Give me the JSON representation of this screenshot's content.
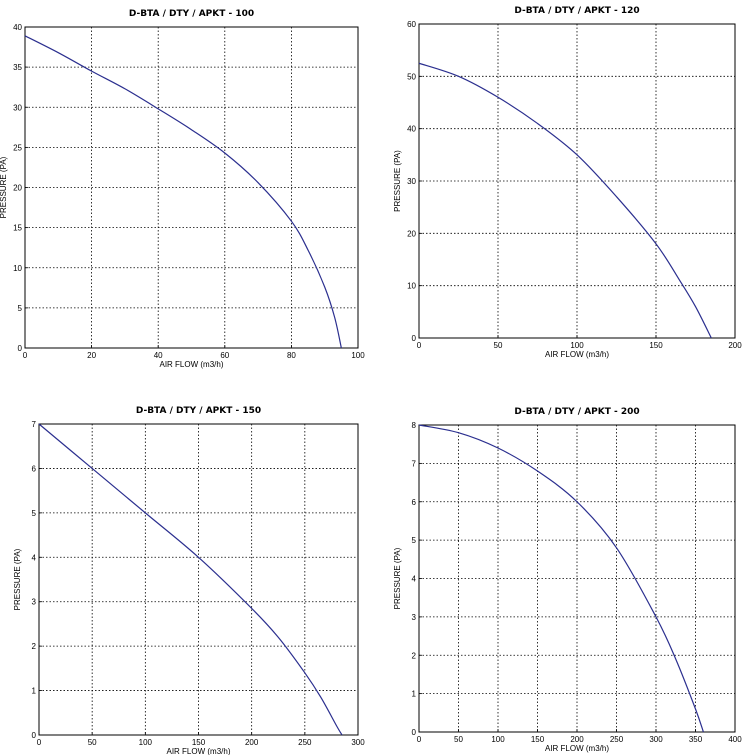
{
  "chart_data": [
    {
      "type": "line",
      "title": "D-BTA / DTY / APKT - 100",
      "xlabel": "AIR FLOW (m3/h)",
      "ylabel": "PRESSURE (PA)",
      "xlim": [
        0,
        100
      ],
      "ylim": [
        0,
        40
      ],
      "xticks": [
        0,
        20,
        40,
        60,
        80,
        100
      ],
      "yticks": [
        0,
        5,
        10,
        15,
        20,
        25,
        30,
        35,
        40
      ],
      "grid": true,
      "series": [
        {
          "x": [
            0,
            10,
            20,
            30,
            40,
            50,
            60,
            70,
            80,
            85,
            90,
            93,
            95
          ],
          "y": [
            38.9,
            36.8,
            34.5,
            32.3,
            29.8,
            27.2,
            24.3,
            20.6,
            15.8,
            12.2,
            7.6,
            3.8,
            0
          ]
        }
      ]
    },
    {
      "type": "line",
      "title": "D-BTA / DTY / APKT - 120",
      "xlabel": "AIR FLOW (m3/h)",
      "ylabel": "PRESSURE (PA)",
      "xlim": [
        0,
        200
      ],
      "ylim": [
        0,
        60
      ],
      "xticks": [
        0,
        50,
        100,
        150,
        200
      ],
      "yticks": [
        0,
        10,
        20,
        30,
        40,
        50,
        60
      ],
      "grid": true,
      "series": [
        {
          "x": [
            0,
            25,
            50,
            75,
            100,
            125,
            150,
            165,
            175,
            185
          ],
          "y": [
            52.5,
            50.0,
            46.0,
            41.0,
            35.0,
            27.0,
            18.0,
            11.0,
            6.0,
            0
          ]
        }
      ]
    },
    {
      "type": "line",
      "title": "D-BTA / DTY / APKT - 150",
      "xlabel": "AIR FLOW (m3/h)",
      "ylabel": "PRESSURE (PA)",
      "xlim": [
        0,
        300
      ],
      "ylim": [
        0,
        7
      ],
      "xticks": [
        0,
        50,
        100,
        150,
        200,
        250,
        300
      ],
      "yticks": [
        0,
        1,
        2,
        3,
        4,
        5,
        6,
        7
      ],
      "grid": true,
      "series": [
        {
          "x": [
            0,
            50,
            100,
            150,
            200,
            225,
            250,
            265,
            280,
            285
          ],
          "y": [
            7.0,
            6.0,
            5.0,
            4.0,
            2.85,
            2.2,
            1.4,
            0.85,
            0.2,
            0
          ]
        }
      ]
    },
    {
      "type": "line",
      "title": "D-BTA / DTY / APKT - 200",
      "xlabel": "AIR FLOW (m3/h)",
      "ylabel": "PRESSURE (PA)",
      "xlim": [
        0,
        400
      ],
      "ylim": [
        0,
        8
      ],
      "xticks": [
        0,
        50,
        100,
        150,
        200,
        250,
        300,
        350,
        400
      ],
      "yticks": [
        0,
        1,
        2,
        3,
        4,
        5,
        6,
        7,
        8
      ],
      "grid": true,
      "series": [
        {
          "x": [
            0,
            50,
            100,
            150,
            200,
            250,
            300,
            325,
            350,
            360
          ],
          "y": [
            8.0,
            7.8,
            7.4,
            6.8,
            6.0,
            4.8,
            3.0,
            1.9,
            0.6,
            0
          ]
        }
      ]
    }
  ]
}
